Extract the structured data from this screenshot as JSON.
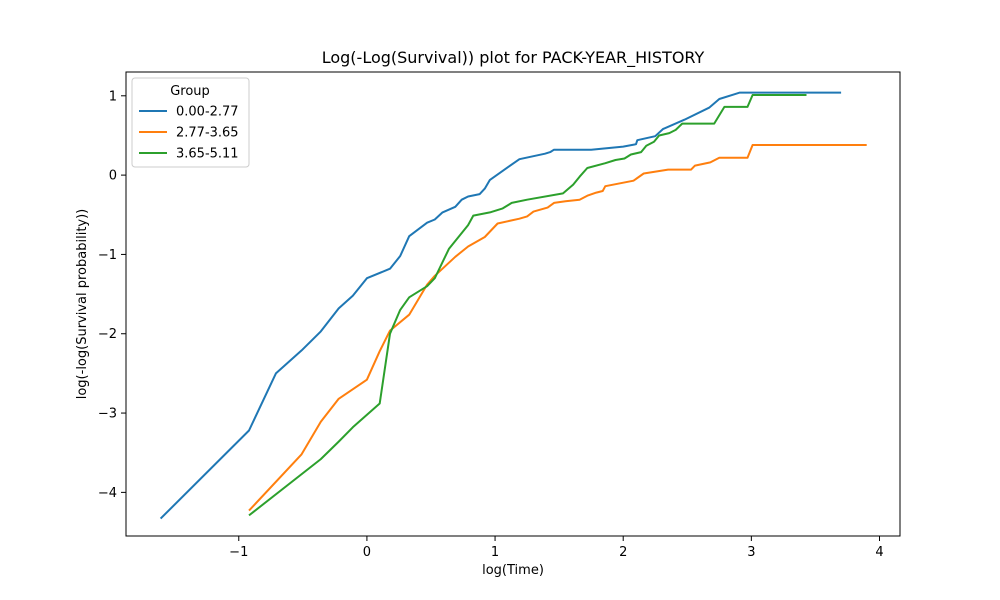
{
  "chart_data": {
    "type": "line",
    "title": "Log(-Log(Survival)) plot for PACK-YEAR_HISTORY",
    "xlabel": "log(Time)",
    "ylabel": "log(-log(Survival probability))",
    "xlim": [
      -1.88,
      4.16
    ],
    "ylim": [
      -4.55,
      1.3
    ],
    "xticks": [
      -1,
      0,
      1,
      2,
      3,
      4
    ],
    "yticks": [
      -4,
      -3,
      -2,
      -1,
      0,
      1
    ],
    "grid": false,
    "legend": {
      "title": "Group",
      "position": "top-left"
    },
    "series": [
      {
        "name": "0.00-2.77",
        "color": "#1f77b4",
        "points": [
          [
            -1.61,
            -4.33
          ],
          [
            -0.92,
            -3.22
          ],
          [
            -0.71,
            -2.5
          ],
          [
            -0.51,
            -2.21
          ],
          [
            -0.36,
            -1.97
          ],
          [
            -0.22,
            -1.68
          ],
          [
            -0.11,
            -1.52
          ],
          [
            0.0,
            -1.3
          ],
          [
            0.18,
            -1.18
          ],
          [
            0.26,
            -1.02
          ],
          [
            0.33,
            -0.77
          ],
          [
            0.47,
            -0.6
          ],
          [
            0.53,
            -0.56
          ],
          [
            0.59,
            -0.47
          ],
          [
            0.69,
            -0.4
          ],
          [
            0.74,
            -0.31
          ],
          [
            0.79,
            -0.27
          ],
          [
            0.88,
            -0.24
          ],
          [
            0.92,
            -0.17
          ],
          [
            0.96,
            -0.06
          ],
          [
            1.1,
            0.1
          ],
          [
            1.19,
            0.2
          ],
          [
            1.39,
            0.27
          ],
          [
            1.43,
            0.29
          ],
          [
            1.46,
            0.32
          ],
          [
            1.75,
            0.32
          ],
          [
            2.0,
            0.36
          ],
          [
            2.1,
            0.39
          ],
          [
            2.11,
            0.44
          ],
          [
            2.25,
            0.49
          ],
          [
            2.31,
            0.58
          ],
          [
            2.48,
            0.7
          ],
          [
            2.67,
            0.85
          ],
          [
            2.75,
            0.96
          ],
          [
            2.87,
            1.02
          ],
          [
            2.91,
            1.04
          ],
          [
            3.7,
            1.04
          ]
        ]
      },
      {
        "name": "2.77-3.65",
        "color": "#ff7f0e",
        "points": [
          [
            -0.92,
            -4.23
          ],
          [
            -0.51,
            -3.52
          ],
          [
            -0.36,
            -3.11
          ],
          [
            -0.22,
            -2.82
          ],
          [
            0.0,
            -2.58
          ],
          [
            0.1,
            -2.22
          ],
          [
            0.18,
            -1.96
          ],
          [
            0.33,
            -1.76
          ],
          [
            0.47,
            -1.38
          ],
          [
            0.53,
            -1.27
          ],
          [
            0.69,
            -1.03
          ],
          [
            0.79,
            -0.9
          ],
          [
            0.92,
            -0.78
          ],
          [
            1.02,
            -0.61
          ],
          [
            1.19,
            -0.55
          ],
          [
            1.25,
            -0.52
          ],
          [
            1.3,
            -0.46
          ],
          [
            1.41,
            -0.41
          ],
          [
            1.46,
            -0.35
          ],
          [
            1.55,
            -0.33
          ],
          [
            1.66,
            -0.31
          ],
          [
            1.72,
            -0.26
          ],
          [
            1.79,
            -0.22
          ],
          [
            1.84,
            -0.2
          ],
          [
            1.86,
            -0.14
          ],
          [
            2.08,
            -0.07
          ],
          [
            2.16,
            0.02
          ],
          [
            2.35,
            0.07
          ],
          [
            2.53,
            0.07
          ],
          [
            2.56,
            0.12
          ],
          [
            2.68,
            0.16
          ],
          [
            2.75,
            0.22
          ],
          [
            2.97,
            0.22
          ],
          [
            3.01,
            0.38
          ],
          [
            3.9,
            0.38
          ]
        ]
      },
      {
        "name": "3.65-5.11",
        "color": "#2ca02c",
        "points": [
          [
            -0.92,
            -4.29
          ],
          [
            -0.36,
            -3.58
          ],
          [
            -0.22,
            -3.36
          ],
          [
            -0.11,
            -3.18
          ],
          [
            0.1,
            -2.88
          ],
          [
            0.18,
            -2.0
          ],
          [
            0.26,
            -1.7
          ],
          [
            0.33,
            -1.54
          ],
          [
            0.47,
            -1.4
          ],
          [
            0.53,
            -1.3
          ],
          [
            0.64,
            -0.93
          ],
          [
            0.79,
            -0.63
          ],
          [
            0.83,
            -0.51
          ],
          [
            0.96,
            -0.47
          ],
          [
            1.06,
            -0.42
          ],
          [
            1.13,
            -0.35
          ],
          [
            1.25,
            -0.31
          ],
          [
            1.53,
            -0.23
          ],
          [
            1.61,
            -0.12
          ],
          [
            1.66,
            -0.02
          ],
          [
            1.72,
            0.09
          ],
          [
            1.86,
            0.15
          ],
          [
            1.94,
            0.19
          ],
          [
            2.01,
            0.21
          ],
          [
            2.06,
            0.26
          ],
          [
            2.14,
            0.29
          ],
          [
            2.18,
            0.37
          ],
          [
            2.24,
            0.42
          ],
          [
            2.28,
            0.5
          ],
          [
            2.36,
            0.53
          ],
          [
            2.41,
            0.57
          ],
          [
            2.46,
            0.65
          ],
          [
            2.71,
            0.65
          ],
          [
            2.79,
            0.86
          ],
          [
            2.97,
            0.86
          ],
          [
            3.01,
            1.01
          ],
          [
            3.43,
            1.01
          ]
        ]
      }
    ]
  }
}
